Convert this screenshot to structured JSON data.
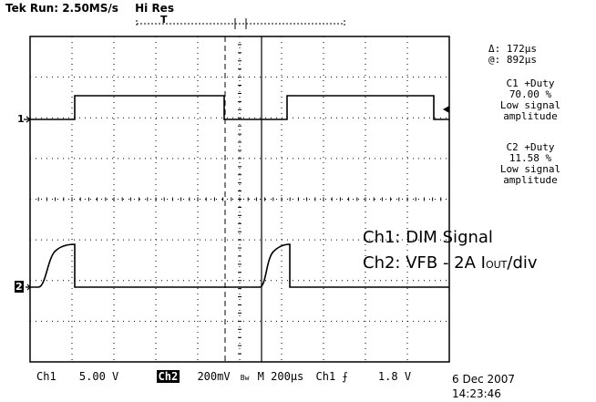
{
  "header": {
    "run_status": "Tek Run: 2.50MS/s",
    "acquisition_mode": "Hi Res",
    "trigger_marker": "T"
  },
  "cursors": {
    "delta": "Δ: 172µs",
    "at": "@: 892µs"
  },
  "measurements": [
    {
      "title": "C1 +Duty",
      "value": "70.00 %",
      "note_line1": "Low signal",
      "note_line2": "amplitude"
    },
    {
      "title": "C2 +Duty",
      "value": "11.58 %",
      "note_line1": "Low signal",
      "note_line2": "amplitude"
    }
  ],
  "channel_markers": {
    "ch1": "1",
    "ch2": "2"
  },
  "legend": {
    "line1": "Ch1: DIM Signal",
    "line2_prefix": "Ch2: VFB - 2A I",
    "line2_sub": "OUT",
    "line2_suffix": "/div"
  },
  "status_bar": {
    "ch1_label": "Ch1",
    "ch1_scale": "5.00 V",
    "ch2_label": "Ch2",
    "ch2_scale": "200mV",
    "bw_symbol": "Bw",
    "timebase_label": "M",
    "timebase": "200µs",
    "trigger_source": "Ch1",
    "trigger_slope": "⨍",
    "trigger_level": "1.8 V",
    "date": "6 Dec 2007",
    "time": "14:23:46"
  },
  "colors": {
    "trace": "#000000",
    "grid": "#000000",
    "background": "#ffffff"
  }
}
